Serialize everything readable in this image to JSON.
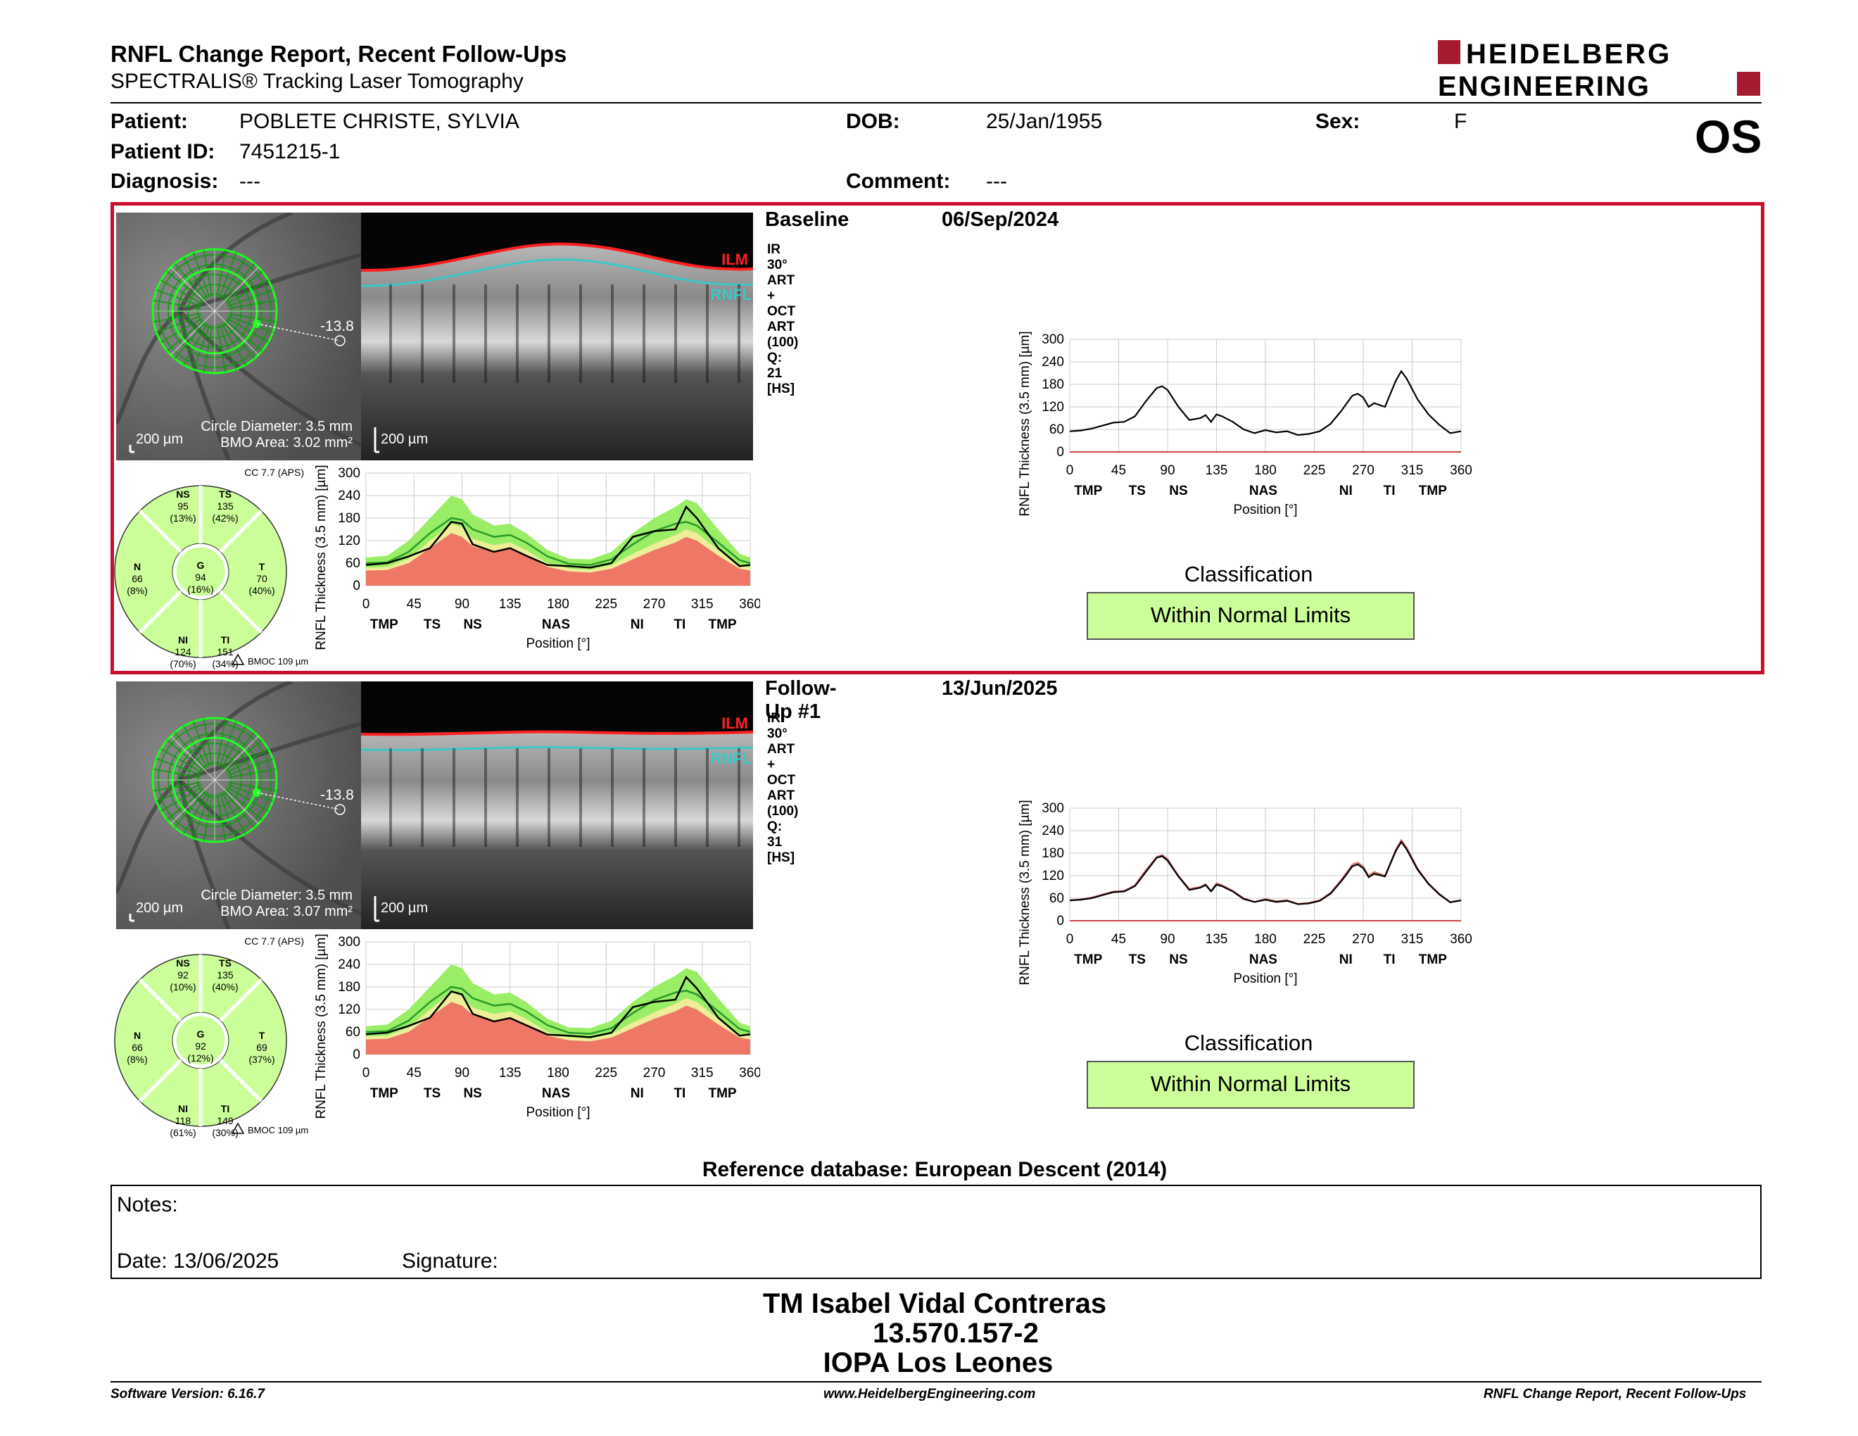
{
  "header": {
    "title": "RNFL Change Report, Recent Follow-Ups",
    "subtitle": "SPECTRALIS® Tracking Laser Tomography",
    "logo_line1": "HEIDELBERG",
    "logo_line2": "ENGINEERING",
    "eye": "OS"
  },
  "patient": {
    "patient_label": "Patient:",
    "patient_value": "POBLETE CHRISTE, SYLVIA",
    "dob_label": "DOB:",
    "dob_value": "25/Jan/1955",
    "sex_label": "Sex:",
    "sex_value": "F",
    "id_label": "Patient ID:",
    "id_value": "7451215-1",
    "diagnosis_label": "Diagnosis:",
    "diagnosis_value": "---",
    "comment_label": "Comment:",
    "comment_value": "---"
  },
  "exams": [
    {
      "label": "Baseline",
      "date": "06/Sep/2024",
      "desc": "IR 30° ART + OCT ART (100) Q: 21 [HS]",
      "fundus": {
        "scale": "200 µm",
        "circle_diameter": "Circle Diameter: 3.5 mm",
        "bmo_area": "BMO Area: 3.02 mm²",
        "angle": "-13.8"
      },
      "oct": {
        "scale": "200 µm",
        "ilm": "ILM",
        "rnfl": "RNFL"
      },
      "sectors": {
        "cc": "CC 7.7 (APS)",
        "bmoc": "BMOC 109 µm",
        "NS": {
          "name": "NS",
          "value": "95",
          "pct": "(13%)"
        },
        "TS": {
          "name": "TS",
          "value": "135",
          "pct": "(42%)"
        },
        "N": {
          "name": "N",
          "value": "66",
          "pct": "(8%)"
        },
        "G": {
          "name": "G",
          "value": "94",
          "pct": "(16%)"
        },
        "T": {
          "name": "T",
          "value": "70",
          "pct": "(40%)"
        },
        "NI": {
          "name": "NI",
          "value": "124",
          "pct": "(70%)"
        },
        "TI": {
          "name": "TI",
          "value": "151",
          "pct": "(34%)"
        }
      },
      "classification_title": "Classification",
      "classification": "Within Normal Limits"
    },
    {
      "label": "Follow-Up #1",
      "date": "13/Jun/2025",
      "desc": "IR 30° ART + OCT ART (100) Q: 31 [HS]",
      "fundus": {
        "scale": "200 µm",
        "circle_diameter": "Circle Diameter: 3.5 mm",
        "bmo_area": "BMO Area: 3.07 mm²",
        "angle": "-13.8"
      },
      "oct": {
        "scale": "200 µm",
        "ilm": "ILM",
        "rnfl": "RNFL"
      },
      "sectors": {
        "cc": "CC 7.7 (APS)",
        "bmoc": "BMOC 109 µm",
        "NS": {
          "name": "NS",
          "value": "92",
          "pct": "(10%)"
        },
        "TS": {
          "name": "TS",
          "value": "135",
          "pct": "(40%)"
        },
        "N": {
          "name": "N",
          "value": "66",
          "pct": "(8%)"
        },
        "G": {
          "name": "G",
          "value": "92",
          "pct": "(12%)"
        },
        "T": {
          "name": "T",
          "value": "69",
          "pct": "(37%)"
        },
        "NI": {
          "name": "NI",
          "value": "118",
          "pct": "(61%)"
        },
        "TI": {
          "name": "TI",
          "value": "149",
          "pct": "(30%)"
        }
      },
      "classification_title": "Classification",
      "classification": "Within Normal Limits"
    }
  ],
  "chart_data": [
    {
      "type": "line",
      "title": "",
      "xlabel": "Position [°]",
      "ylabel": "RNFL Thickness (3.5 mm) [µm]",
      "xlim": [
        0,
        360
      ],
      "ylim": [
        0,
        300
      ],
      "xticks": [
        0,
        45,
        90,
        135,
        180,
        225,
        270,
        315,
        360
      ],
      "yticks": [
        0,
        60,
        120,
        180,
        240,
        300
      ],
      "sector_labels": [
        {
          "label": "TMP",
          "x": 17
        },
        {
          "label": "TS",
          "x": 62
        },
        {
          "label": "NS",
          "x": 100
        },
        {
          "label": "NAS",
          "x": 178
        },
        {
          "label": "NI",
          "x": 254
        },
        {
          "label": "TI",
          "x": 294
        },
        {
          "label": "TMP",
          "x": 334
        }
      ],
      "series": [
        {
          "exam": "Baseline",
          "x": [
            0,
            10,
            20,
            30,
            40,
            50,
            60,
            70,
            80,
            85,
            90,
            100,
            110,
            120,
            125,
            130,
            135,
            140,
            150,
            160,
            170,
            180,
            190,
            200,
            210,
            220,
            230,
            240,
            250,
            255,
            260,
            265,
            270,
            275,
            280,
            290,
            300,
            305,
            310,
            320,
            330,
            340,
            350,
            360
          ],
          "values": [
            55,
            57,
            62,
            70,
            78,
            80,
            95,
            135,
            170,
            175,
            165,
            120,
            85,
            90,
            98,
            80,
            100,
            95,
            80,
            60,
            50,
            58,
            52,
            55,
            45,
            48,
            55,
            75,
            110,
            130,
            150,
            155,
            145,
            120,
            130,
            120,
            190,
            215,
            195,
            140,
            100,
            72,
            50,
            55
          ]
        }
      ]
    },
    {
      "type": "line",
      "title": "",
      "xlabel": "Position [°]",
      "ylabel": "RNFL Thickness (3.5 mm) [µm]",
      "xlim": [
        0,
        360
      ],
      "ylim": [
        0,
        300
      ],
      "xticks": [
        0,
        45,
        90,
        135,
        180,
        225,
        270,
        315,
        360
      ],
      "yticks": [
        0,
        60,
        120,
        180,
        240,
        300
      ],
      "sector_labels": [
        {
          "label": "TMP",
          "x": 17
        },
        {
          "label": "TS",
          "x": 62
        },
        {
          "label": "NS",
          "x": 100
        },
        {
          "label": "NAS",
          "x": 178
        },
        {
          "label": "NI",
          "x": 254
        },
        {
          "label": "TI",
          "x": 294
        },
        {
          "label": "TMP",
          "x": 334
        }
      ],
      "series": [
        {
          "exam": "Baseline",
          "x": [
            0,
            10,
            20,
            30,
            40,
            50,
            60,
            70,
            80,
            85,
            90,
            100,
            110,
            120,
            125,
            130,
            135,
            140,
            150,
            160,
            170,
            180,
            190,
            200,
            210,
            220,
            230,
            240,
            250,
            255,
            260,
            265,
            270,
            275,
            280,
            290,
            300,
            305,
            310,
            320,
            330,
            340,
            350,
            360
          ],
          "values": [
            55,
            57,
            62,
            70,
            78,
            80,
            95,
            135,
            170,
            175,
            165,
            120,
            85,
            90,
            98,
            80,
            100,
            95,
            80,
            60,
            50,
            58,
            52,
            55,
            45,
            48,
            55,
            75,
            110,
            130,
            150,
            155,
            145,
            120,
            130,
            120,
            190,
            215,
            195,
            140,
            100,
            72,
            50,
            55
          ]
        },
        {
          "exam": "Follow-Up #1",
          "x": [
            0,
            10,
            20,
            30,
            40,
            50,
            60,
            70,
            80,
            85,
            90,
            100,
            110,
            120,
            125,
            130,
            135,
            140,
            150,
            160,
            170,
            180,
            190,
            200,
            210,
            220,
            230,
            240,
            250,
            255,
            260,
            265,
            270,
            275,
            280,
            290,
            300,
            305,
            310,
            320,
            330,
            340,
            350,
            360
          ],
          "values": [
            54,
            56,
            60,
            68,
            76,
            78,
            92,
            130,
            168,
            172,
            160,
            118,
            82,
            88,
            95,
            78,
            96,
            92,
            78,
            58,
            50,
            56,
            50,
            53,
            44,
            46,
            53,
            72,
            106,
            125,
            145,
            150,
            140,
            116,
            125,
            118,
            186,
            210,
            190,
            136,
            98,
            70,
            49,
            54
          ]
        }
      ]
    },
    {
      "type": "area",
      "title": "",
      "xlabel": "Position [°]",
      "ylabel": "RNFL Thickness (3.5 mm) [µm]",
      "xlim": [
        0,
        360
      ],
      "ylim": [
        0,
        300
      ],
      "xticks": [
        0,
        45,
        90,
        135,
        180,
        225,
        270,
        315,
        360
      ],
      "yticks": [
        0,
        60,
        120,
        180,
        240,
        300
      ],
      "sector_labels": [
        {
          "label": "TMP",
          "x": 17
        },
        {
          "label": "TS",
          "x": 62
        },
        {
          "label": "NS",
          "x": 100
        },
        {
          "label": "NAS",
          "x": 178
        },
        {
          "label": "NI",
          "x": 254
        },
        {
          "label": "TI",
          "x": 294
        },
        {
          "label": "TMP",
          "x": 334
        }
      ],
      "x": [
        0,
        20,
        40,
        60,
        80,
        90,
        100,
        120,
        135,
        150,
        170,
        190,
        210,
        230,
        250,
        270,
        290,
        300,
        310,
        330,
        350,
        360
      ],
      "bands": {
        "red_upper": [
          40,
          42,
          60,
          100,
          140,
          130,
          105,
          90,
          98,
          80,
          50,
          38,
          35,
          45,
          70,
          95,
          115,
          130,
          120,
          80,
          45,
          40
        ],
        "yellow_upper": [
          48,
          50,
          72,
          120,
          165,
          155,
          125,
          108,
          115,
          95,
          60,
          46,
          42,
          55,
          85,
          112,
          135,
          150,
          140,
          95,
          54,
          48
        ],
        "green_upper": [
          75,
          80,
          120,
          180,
          240,
          230,
          190,
          160,
          165,
          140,
          95,
          72,
          70,
          90,
          140,
          180,
          210,
          230,
          220,
          150,
          85,
          75
        ],
        "mean": [
          60,
          62,
          90,
          140,
          180,
          175,
          150,
          130,
          135,
          115,
          78,
          58,
          55,
          70,
          110,
          145,
          165,
          170,
          160,
          115,
          68,
          60
        ]
      },
      "series": [
        {
          "exam": "Baseline",
          "values": [
            55,
            60,
            78,
            100,
            170,
            165,
            110,
            90,
            100,
            80,
            55,
            52,
            48,
            60,
            130,
            145,
            150,
            210,
            180,
            100,
            52,
            55
          ]
        }
      ]
    },
    {
      "type": "area",
      "title": "",
      "xlabel": "Position [°]",
      "ylabel": "RNFL Thickness (3.5 mm) [µm]",
      "xlim": [
        0,
        360
      ],
      "ylim": [
        0,
        300
      ],
      "xticks": [
        0,
        45,
        90,
        135,
        180,
        225,
        270,
        315,
        360
      ],
      "yticks": [
        0,
        60,
        120,
        180,
        240,
        300
      ],
      "sector_labels": [
        {
          "label": "TMP",
          "x": 17
        },
        {
          "label": "TS",
          "x": 62
        },
        {
          "label": "NS",
          "x": 100
        },
        {
          "label": "NAS",
          "x": 178
        },
        {
          "label": "NI",
          "x": 254
        },
        {
          "label": "TI",
          "x": 294
        },
        {
          "label": "TMP",
          "x": 334
        }
      ],
      "x": [
        0,
        20,
        40,
        60,
        80,
        90,
        100,
        120,
        135,
        150,
        170,
        190,
        210,
        230,
        250,
        270,
        290,
        300,
        310,
        330,
        350,
        360
      ],
      "bands": {
        "red_upper": [
          40,
          42,
          60,
          100,
          140,
          130,
          105,
          90,
          98,
          80,
          50,
          38,
          35,
          45,
          70,
          95,
          115,
          130,
          120,
          80,
          45,
          40
        ],
        "yellow_upper": [
          48,
          50,
          72,
          120,
          165,
          155,
          125,
          108,
          115,
          95,
          60,
          46,
          42,
          55,
          85,
          112,
          135,
          150,
          140,
          95,
          54,
          48
        ],
        "green_upper": [
          75,
          80,
          120,
          180,
          240,
          230,
          190,
          160,
          165,
          140,
          95,
          72,
          70,
          90,
          140,
          180,
          210,
          230,
          220,
          150,
          85,
          75
        ],
        "mean": [
          60,
          62,
          90,
          140,
          180,
          175,
          150,
          130,
          135,
          115,
          78,
          58,
          55,
          70,
          110,
          145,
          165,
          170,
          160,
          115,
          68,
          60
        ]
      },
      "series": [
        {
          "exam": "Follow-Up #1",
          "values": [
            54,
            58,
            76,
            98,
            168,
            160,
            108,
            88,
            97,
            78,
            53,
            50,
            46,
            58,
            126,
            140,
            146,
            206,
            176,
            98,
            50,
            54
          ]
        }
      ]
    }
  ],
  "reference": "Reference database: European Descent (2014)",
  "notes": {
    "label": "Notes:",
    "date_label": "Date: 13/06/2025",
    "signature_label": "Signature:"
  },
  "signatory": {
    "name": "TM Isabel Vidal Contreras",
    "id": "13.570.157-2",
    "org": "IOPA Los Leones"
  },
  "footer": {
    "version": "Software Version: 6.16.7",
    "url": "www.HeidelbergEngineering.com",
    "report": "RNFL Change Report, Recent Follow-Ups"
  },
  "colors": {
    "frame_red": "#c8102e",
    "wnl_green": "#ccff99",
    "ilm_red": "#ff2020",
    "rnfl_cyan": "#3cc7c7",
    "norm_green": "#99ee66",
    "norm_yellow": "#eeee99",
    "norm_red": "#ee7766"
  }
}
